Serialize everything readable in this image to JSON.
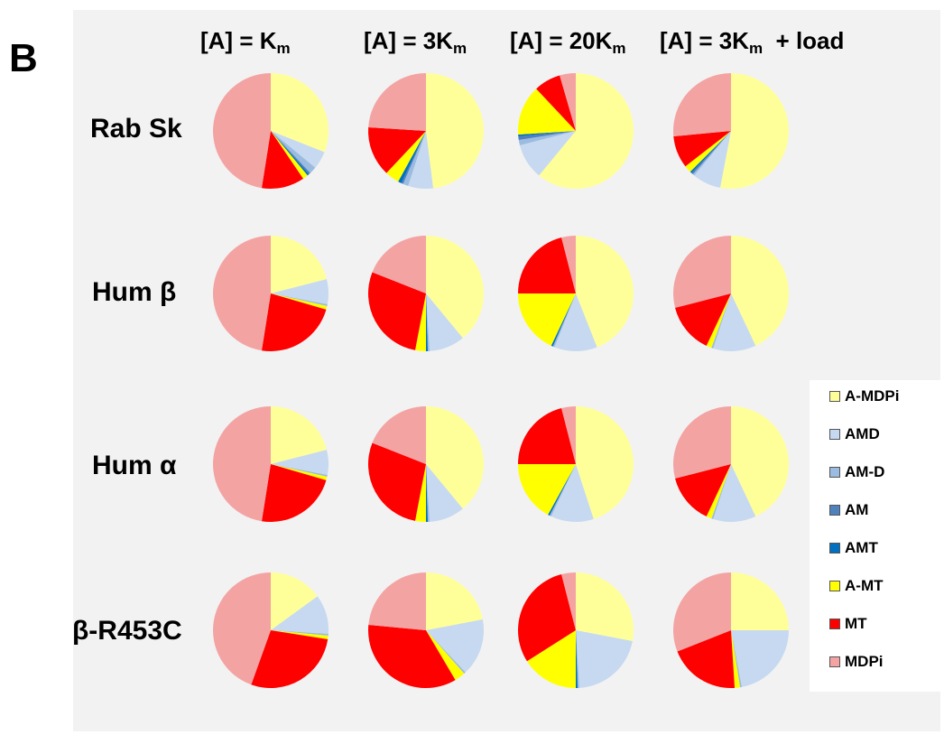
{
  "figure": {
    "panel_letter": "B"
  },
  "chart_data": {
    "type": "pie",
    "title": "",
    "columns": [
      {
        "pre": "[A] = K",
        "sub": "m",
        "post": ""
      },
      {
        "pre": "[A] = 3K",
        "sub": "m",
        "post": ""
      },
      {
        "pre": "[A] = 20K",
        "sub": "m",
        "post": ""
      },
      {
        "pre": "[A] = 3K",
        "sub": "m",
        "post": "  + load"
      }
    ],
    "rows": [
      "Rab Sk",
      "Hum β",
      "Hum α",
      "β-R453C"
    ],
    "categories": [
      "A-MDPi",
      "AMD",
      "AM-D",
      "AM",
      "AMT",
      "A-MT",
      "MT",
      "MDPi"
    ],
    "colors": [
      "#ffff99",
      "#c6d9f0",
      "#9bbbe0",
      "#4f81bd",
      "#0070c0",
      "#ffff00",
      "#ff0000",
      "#f4a3a3"
    ],
    "values": [
      [
        [
          31,
          5,
          2,
          0.5,
          0.5,
          1.5,
          12,
          47.5
        ],
        [
          48,
          7,
          1.5,
          0.5,
          1,
          4,
          14,
          24
        ],
        [
          61,
          10,
          1.5,
          1,
          0.5,
          14,
          7.5,
          4.5
        ],
        [
          53,
          8,
          0.5,
          0.5,
          0.5,
          2,
          9,
          26.5
        ]
      ],
      [
        [
          21,
          7,
          0.5,
          0,
          0,
          1,
          23,
          47.5
        ],
        [
          39,
          10,
          0.5,
          0,
          0.5,
          3,
          28,
          19
        ],
        [
          44,
          12,
          0.5,
          0,
          0.5,
          18,
          21,
          4
        ],
        [
          43,
          12,
          0.5,
          0,
          0,
          1.5,
          14,
          29
        ]
      ],
      [
        [
          21,
          7,
          0.5,
          0,
          0,
          1,
          23,
          47.5
        ],
        [
          39,
          10,
          0.5,
          0,
          0.5,
          3,
          28,
          19
        ],
        [
          45,
          12,
          0.5,
          0,
          0.5,
          17,
          21,
          4
        ],
        [
          43,
          12,
          0.5,
          0,
          0,
          1.5,
          14,
          29
        ]
      ],
      [
        [
          15,
          11,
          0.5,
          0,
          0,
          1,
          28,
          44.5
        ],
        [
          22,
          16,
          0.5,
          0,
          0,
          3,
          35,
          23.5
        ],
        [
          28,
          21,
          0.5,
          0,
          0.5,
          16,
          30,
          4
        ],
        [
          25,
          22,
          0.5,
          0,
          0,
          1.5,
          20,
          31
        ]
      ]
    ]
  }
}
